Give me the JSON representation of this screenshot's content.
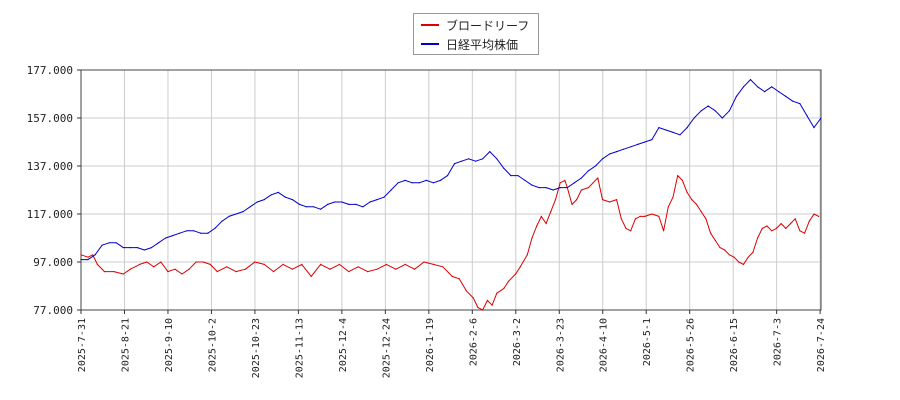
{
  "chart_data": {
    "type": "line",
    "title": "",
    "xlabel": "",
    "ylabel": "",
    "ylim": [
      77,
      177
    ],
    "yticks": [
      "77.000",
      "97.000",
      "117.000",
      "137.000",
      "157.000",
      "177.000"
    ],
    "xticks": [
      "2025-7-31",
      "2025-8-21",
      "2025-9-10",
      "2025-10-2",
      "2025-10-23",
      "2025-11-13",
      "2025-12-4",
      "2025-12-24",
      "2026-1-19",
      "2026-2-6",
      "2026-3-2",
      "2026-3-23",
      "2026-4-10",
      "2026-5-1",
      "2026-5-26",
      "2026-6-15",
      "2026-7-3",
      "2026-7-24"
    ],
    "grid": true,
    "legend_position": "top-center",
    "series": [
      {
        "name": "ブロードリーフ",
        "color": "#dd0000",
        "points": [
          [
            0,
            100
          ],
          [
            3,
            99
          ],
          [
            5,
            100
          ],
          [
            7,
            96
          ],
          [
            10,
            93
          ],
          [
            14,
            93
          ],
          [
            18,
            92
          ],
          [
            21,
            94
          ],
          [
            25,
            96
          ],
          [
            28,
            97
          ],
          [
            31,
            95
          ],
          [
            34,
            97
          ],
          [
            37,
            93
          ],
          [
            40,
            94
          ],
          [
            43,
            92
          ],
          [
            46,
            94
          ],
          [
            49,
            97
          ],
          [
            52,
            97
          ],
          [
            55,
            96
          ],
          [
            58,
            93
          ],
          [
            62,
            95
          ],
          [
            66,
            93
          ],
          [
            70,
            94
          ],
          [
            74,
            97
          ],
          [
            78,
            96
          ],
          [
            82,
            93
          ],
          [
            86,
            96
          ],
          [
            90,
            94
          ],
          [
            94,
            96
          ],
          [
            98,
            91
          ],
          [
            102,
            96
          ],
          [
            106,
            94
          ],
          [
            110,
            96
          ],
          [
            114,
            93
          ],
          [
            118,
            95
          ],
          [
            122,
            93
          ],
          [
            126,
            94
          ],
          [
            130,
            96
          ],
          [
            134,
            94
          ],
          [
            138,
            96
          ],
          [
            142,
            94
          ],
          [
            146,
            97
          ],
          [
            150,
            96
          ],
          [
            154,
            95
          ],
          [
            158,
            91
          ],
          [
            161,
            90
          ],
          [
            164,
            85
          ],
          [
            167,
            82
          ],
          [
            169,
            78
          ],
          [
            171,
            77
          ],
          [
            173,
            81
          ],
          [
            175,
            79
          ],
          [
            177,
            84
          ],
          [
            180,
            86
          ],
          [
            182,
            89
          ],
          [
            185,
            92
          ],
          [
            187,
            95
          ],
          [
            190,
            100
          ],
          [
            192,
            107
          ],
          [
            194,
            112
          ],
          [
            196,
            116
          ],
          [
            198,
            113
          ],
          [
            200,
            118
          ],
          [
            202,
            123
          ],
          [
            204,
            130
          ],
          [
            206,
            131
          ],
          [
            207,
            128
          ],
          [
            209,
            121
          ],
          [
            211,
            123
          ],
          [
            213,
            127
          ],
          [
            216,
            128
          ],
          [
            218,
            130
          ],
          [
            220,
            132
          ],
          [
            222,
            123
          ],
          [
            225,
            122
          ],
          [
            228,
            123
          ],
          [
            230,
            115
          ],
          [
            232,
            111
          ],
          [
            234,
            110
          ],
          [
            236,
            115
          ],
          [
            238,
            116
          ],
          [
            240,
            116
          ],
          [
            243,
            117
          ],
          [
            246,
            116
          ],
          [
            248,
            110
          ],
          [
            250,
            120
          ],
          [
            252,
            124
          ],
          [
            254,
            133
          ],
          [
            256,
            131
          ],
          [
            258,
            126
          ],
          [
            260,
            123
          ],
          [
            262,
            121
          ],
          [
            264,
            118
          ],
          [
            266,
            115
          ],
          [
            268,
            109
          ],
          [
            270,
            106
          ],
          [
            272,
            103
          ],
          [
            274,
            102
          ],
          [
            276,
            100
          ],
          [
            278,
            99
          ],
          [
            280,
            97
          ],
          [
            282,
            96
          ],
          [
            284,
            99
          ],
          [
            286,
            101
          ],
          [
            288,
            107
          ],
          [
            290,
            111
          ],
          [
            292,
            112
          ],
          [
            294,
            110
          ],
          [
            296,
            111
          ],
          [
            298,
            113
          ],
          [
            300,
            111
          ],
          [
            302,
            113
          ],
          [
            304,
            115
          ],
          [
            306,
            110
          ],
          [
            308,
            109
          ],
          [
            310,
            114
          ],
          [
            312,
            117
          ],
          [
            314,
            116
          ]
        ]
      },
      {
        "name": "日経平均株価",
        "color": "#0000cc",
        "points": [
          [
            0,
            98
          ],
          [
            3,
            98
          ],
          [
            6,
            100
          ],
          [
            9,
            104
          ],
          [
            12,
            105
          ],
          [
            15,
            105
          ],
          [
            18,
            103
          ],
          [
            21,
            103
          ],
          [
            24,
            103
          ],
          [
            27,
            102
          ],
          [
            30,
            103
          ],
          [
            33,
            105
          ],
          [
            36,
            107
          ],
          [
            39,
            108
          ],
          [
            42,
            109
          ],
          [
            45,
            110
          ],
          [
            48,
            110
          ],
          [
            51,
            109
          ],
          [
            54,
            109
          ],
          [
            57,
            111
          ],
          [
            60,
            114
          ],
          [
            63,
            116
          ],
          [
            66,
            117
          ],
          [
            69,
            118
          ],
          [
            72,
            120
          ],
          [
            75,
            122
          ],
          [
            78,
            123
          ],
          [
            81,
            125
          ],
          [
            84,
            126
          ],
          [
            87,
            124
          ],
          [
            90,
            123
          ],
          [
            93,
            121
          ],
          [
            96,
            120
          ],
          [
            99,
            120
          ],
          [
            102,
            119
          ],
          [
            105,
            121
          ],
          [
            108,
            122
          ],
          [
            111,
            122
          ],
          [
            114,
            121
          ],
          [
            117,
            121
          ],
          [
            120,
            120
          ],
          [
            123,
            122
          ],
          [
            126,
            123
          ],
          [
            129,
            124
          ],
          [
            132,
            127
          ],
          [
            135,
            130
          ],
          [
            138,
            131
          ],
          [
            141,
            130
          ],
          [
            144,
            130
          ],
          [
            147,
            131
          ],
          [
            150,
            130
          ],
          [
            153,
            131
          ],
          [
            156,
            133
          ],
          [
            159,
            138
          ],
          [
            162,
            139
          ],
          [
            165,
            140
          ],
          [
            168,
            139
          ],
          [
            171,
            140
          ],
          [
            174,
            143
          ],
          [
            177,
            140
          ],
          [
            180,
            136
          ],
          [
            183,
            133
          ],
          [
            186,
            133
          ],
          [
            189,
            131
          ],
          [
            192,
            129
          ],
          [
            195,
            128
          ],
          [
            198,
            128
          ],
          [
            201,
            127
          ],
          [
            204,
            128
          ],
          [
            207,
            128
          ],
          [
            210,
            130
          ],
          [
            213,
            132
          ],
          [
            216,
            135
          ],
          [
            219,
            137
          ],
          [
            222,
            140
          ],
          [
            225,
            142
          ],
          [
            228,
            143
          ],
          [
            231,
            144
          ],
          [
            234,
            145
          ],
          [
            237,
            146
          ],
          [
            240,
            147
          ],
          [
            243,
            148
          ],
          [
            246,
            153
          ],
          [
            249,
            152
          ],
          [
            252,
            151
          ],
          [
            255,
            150
          ],
          [
            258,
            153
          ],
          [
            261,
            157
          ],
          [
            264,
            160
          ],
          [
            267,
            162
          ],
          [
            270,
            160
          ],
          [
            273,
            157
          ],
          [
            276,
            160
          ],
          [
            279,
            166
          ],
          [
            282,
            170
          ],
          [
            285,
            173
          ],
          [
            288,
            170
          ],
          [
            291,
            168
          ],
          [
            294,
            170
          ],
          [
            297,
            168
          ],
          [
            300,
            166
          ],
          [
            303,
            164
          ],
          [
            306,
            163
          ],
          [
            309,
            158
          ],
          [
            312,
            153
          ],
          [
            315,
            157
          ]
        ]
      }
    ]
  }
}
